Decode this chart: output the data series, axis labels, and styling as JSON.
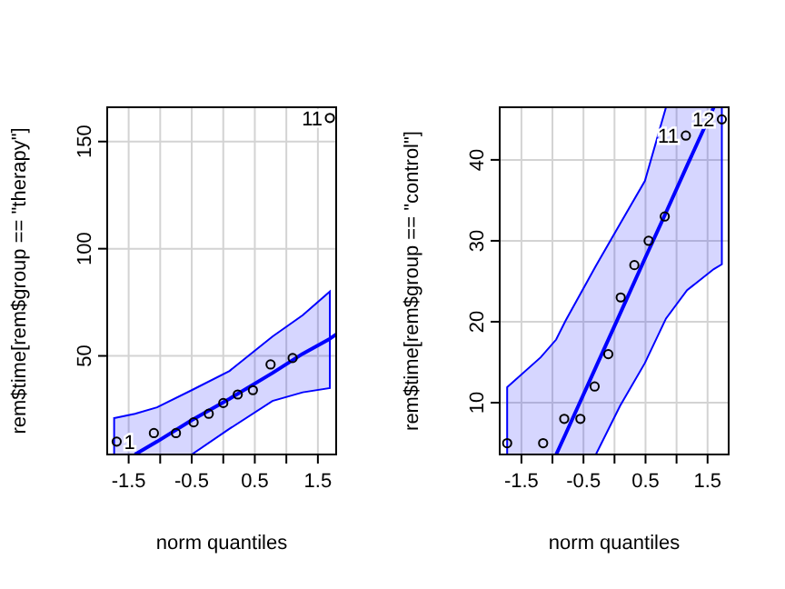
{
  "chart_data": [
    {
      "type": "scatter",
      "xlabel": "norm quantiles",
      "ylabel": "rem$time[rem$group == \"therapy\"]",
      "xlim": [
        -1.84,
        1.79
      ],
      "ylim": [
        4,
        166
      ],
      "xticks": [
        -1.5,
        {
          "value": -1,
          "label": null
        },
        -0.5,
        {
          "value": 0,
          "label": null
        },
        0.5,
        {
          "value": 1,
          "label": null
        },
        1.5
      ],
      "yticks": [
        50,
        100,
        150
      ],
      "grid": true,
      "series": [
        {
          "type": "line",
          "color": "#0000ff",
          "x": [
            -1.73,
            -1.4,
            -1.05,
            -0.5,
            0.1,
            0.78,
            1.26,
            1.69,
            1.79
          ],
          "values": [
            null,
            4,
            10,
            20,
            30,
            42,
            51,
            58,
            60
          ],
          "lower": [
            4,
            4,
            4,
            4,
            16,
            29,
            33,
            35,
            null
          ],
          "upper": [
            21,
            23,
            26,
            34,
            43,
            59,
            69,
            80,
            null
          ]
        },
        {
          "color": "#000000",
          "marker": "circle",
          "x": [
            -1.69,
            -1.1,
            -0.75,
            -0.47,
            -0.23,
            0,
            0.23,
            0.47,
            0.75,
            1.1,
            1.69
          ],
          "values": [
            10,
            14,
            14,
            19,
            23,
            28,
            32,
            34,
            46,
            49,
            161
          ]
        }
      ],
      "annotations": [
        {
          "text": "1",
          "x": -1.69,
          "y": 10
        },
        {
          "text": "11",
          "x": 1.69,
          "y": 161
        }
      ]
    },
    {
      "type": "scatter",
      "xlabel": "norm quantiles",
      "ylabel": "rem$time[rem$group == \"control\"]",
      "xlim": [
        -1.85,
        1.84
      ],
      "ylim": [
        3.6,
        46.5
      ],
      "xticks": [
        -1.5,
        {
          "value": -1,
          "label": null
        },
        -0.5,
        {
          "value": 0,
          "label": null
        },
        0.5,
        {
          "value": 1,
          "label": null
        },
        1.5
      ],
      "yticks": [
        10,
        20,
        30,
        40
      ],
      "grid": true,
      "series": [
        {
          "type": "line",
          "color": "#0000ff",
          "x": [
            -1.73,
            -1.19,
            -0.94,
            -0.79,
            -0.3,
            0.09,
            0.49,
            0.83,
            1.17,
            1.6,
            1.73
          ],
          "values": [
            null,
            null,
            3.6,
            6.1,
            14.4,
            21,
            27.8,
            33.5,
            39.3,
            46.5,
            null
          ],
          "lower": [
            3.6,
            3.6,
            3.6,
            3.6,
            3.6,
            9.6,
            14.9,
            20.4,
            23.9,
            26.5,
            27.1
          ],
          "upper": [
            11.9,
            15.6,
            17.8,
            20.1,
            26.9,
            32.1,
            37.4,
            46.5,
            46.5,
            46.5,
            46.5
          ]
        },
        {
          "color": "#000000",
          "marker": "circle",
          "x": [
            -1.73,
            -1.15,
            -0.81,
            -0.55,
            -0.32,
            -0.1,
            0.1,
            0.32,
            0.55,
            0.81,
            1.15,
            1.73
          ],
          "values": [
            5,
            5,
            8,
            8,
            12,
            16,
            23,
            27,
            30,
            33,
            43,
            45
          ]
        }
      ],
      "annotations": [
        {
          "text": "11",
          "x": 1.15,
          "y": 43
        },
        {
          "text": "12",
          "x": 1.73,
          "y": 45
        }
      ]
    }
  ]
}
